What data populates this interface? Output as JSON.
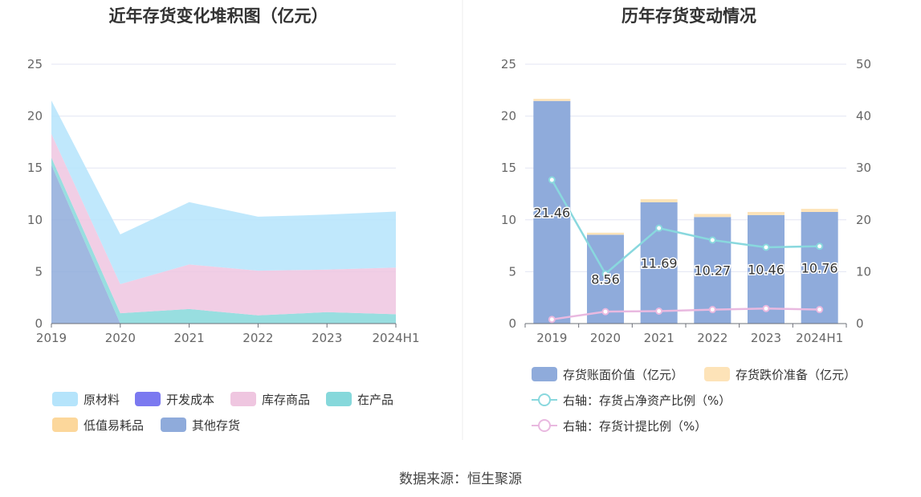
{
  "source": "数据来源：恒生聚源",
  "chart_data": [
    {
      "type": "area",
      "stacked": true,
      "title": "近年存货变化堆积图（亿元）",
      "categories": [
        "2019",
        "2020",
        "2021",
        "2022",
        "2023",
        "2024H1"
      ],
      "y_ticks": [
        "0",
        "5",
        "10",
        "15",
        "20",
        "25"
      ],
      "ylim": [
        0,
        25
      ],
      "series": [
        {
          "name": "其他存货",
          "color": "#8fabdb",
          "values": [
            15.3,
            0.0,
            0.0,
            0.0,
            0.0,
            0.0
          ]
        },
        {
          "name": "低值易耗品",
          "color": "#fcd79b",
          "values": [
            0.0,
            0.0,
            0.0,
            0.0,
            0.0,
            0.0
          ]
        },
        {
          "name": "在产品",
          "color": "#86d8db",
          "values": [
            0.7,
            1.0,
            1.4,
            0.8,
            1.1,
            0.9
          ]
        },
        {
          "name": "库存商品",
          "color": "#efc6e0",
          "values": [
            2.3,
            2.8,
            4.3,
            4.3,
            4.1,
            4.5
          ]
        },
        {
          "name": "开发成本",
          "color": "#7b79f0",
          "values": [
            0.0,
            0.0,
            0.0,
            0.0,
            0.0,
            0.0
          ]
        },
        {
          "name": "原材料",
          "color": "#b5e4fb",
          "values": [
            3.2,
            4.8,
            6.0,
            5.2,
            5.3,
            5.4
          ]
        }
      ],
      "legend_order": [
        "原材料",
        "开发成本",
        "库存商品",
        "在产品",
        "低值易耗品",
        "其他存货"
      ],
      "legend_position": "bottom"
    },
    {
      "type": "bar",
      "title": "历年存货变动情况",
      "categories": [
        "2019",
        "2020",
        "2021",
        "2022",
        "2023",
        "2024H1"
      ],
      "y_ticks_left": [
        "0",
        "5",
        "10",
        "15",
        "20",
        "25"
      ],
      "y_ticks_right": [
        "0",
        "10",
        "20",
        "30",
        "40",
        "50"
      ],
      "ylim_left": [
        0,
        25
      ],
      "ylim_right": [
        0,
        50
      ],
      "bars": [
        {
          "name": "存货账面价值（亿元）",
          "color": "#8fabdb",
          "values": [
            21.46,
            8.56,
            11.69,
            10.27,
            10.46,
            10.76
          ],
          "labels": [
            "21.46",
            "8.56",
            "11.69",
            "10.27",
            "10.46",
            "10.76"
          ]
        },
        {
          "name": "存货跌价准备（亿元）",
          "color": "#fde3b8",
          "values": [
            0.2,
            0.2,
            0.3,
            0.3,
            0.3,
            0.3
          ]
        }
      ],
      "lines": [
        {
          "name": "右轴：存货占净资产比例（%）",
          "color": "#89d8de",
          "values": [
            27.7,
            9.6,
            18.4,
            16.1,
            14.7,
            14.9
          ]
        },
        {
          "name": "右轴：存货计提比例（%）",
          "color": "#e9b9e0",
          "values": [
            0.8,
            2.3,
            2.4,
            2.7,
            2.9,
            2.7
          ]
        }
      ],
      "legend_position": "bottom"
    }
  ]
}
